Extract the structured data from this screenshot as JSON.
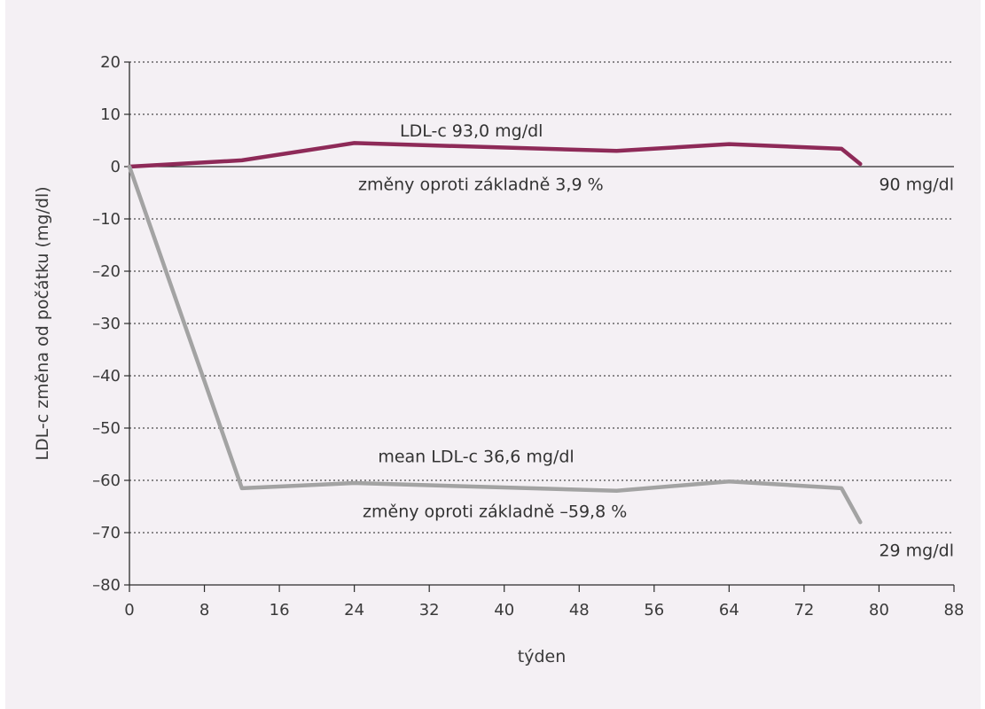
{
  "chart_data": {
    "type": "line",
    "xlabel": "týden",
    "ylabel": "LDL-c změna od počátku (mg/dl)",
    "xlim": [
      0,
      88
    ],
    "ylim": [
      -80,
      20
    ],
    "xticks": [
      0,
      8,
      16,
      24,
      32,
      40,
      48,
      56,
      64,
      72,
      80,
      88
    ],
    "yticks": [
      20,
      10,
      0,
      -10,
      -20,
      -30,
      -40,
      -50,
      -60,
      -70,
      -80
    ],
    "ytick_labels": [
      "20",
      "10",
      "0",
      "–10",
      "–20",
      "–30",
      "–40",
      "–50",
      "–60",
      "–70",
      "–80"
    ],
    "grid": "horizontal-dotted",
    "series": [
      {
        "color": "#8e2a58",
        "x": [
          0,
          12,
          24,
          52,
          64,
          76,
          78
        ],
        "y": [
          0,
          1.2,
          4.5,
          3.0,
          4.3,
          3.4,
          0.5
        ]
      },
      {
        "color": "#a3a3a3",
        "x": [
          0,
          12,
          24,
          52,
          64,
          76,
          78
        ],
        "y": [
          0,
          -61.5,
          -60.5,
          -62.0,
          -60.2,
          -61.5,
          -68.0
        ]
      }
    ],
    "annotations": [
      {
        "id": "upper-mean",
        "text": "LDL-c 93,0 mg/dl",
        "x": 36.5,
        "y": 5.8
      },
      {
        "id": "upper-change",
        "text": "změny oproti základně 3,9 %",
        "x": 37.5,
        "y": -4.5
      },
      {
        "id": "upper-end",
        "text": "90 mg/dl",
        "x": 84,
        "y": -4.5
      },
      {
        "id": "lower-mean",
        "text": "mean LDL-c 36,6 mg/dl",
        "x": 37,
        "y": -56.5
      },
      {
        "id": "lower-change",
        "text": "změny oproti základně –59,8 %",
        "x": 39,
        "y": -67.0
      },
      {
        "id": "lower-end",
        "text": "29 mg/dl",
        "x": 84,
        "y": -74.5
      }
    ]
  }
}
